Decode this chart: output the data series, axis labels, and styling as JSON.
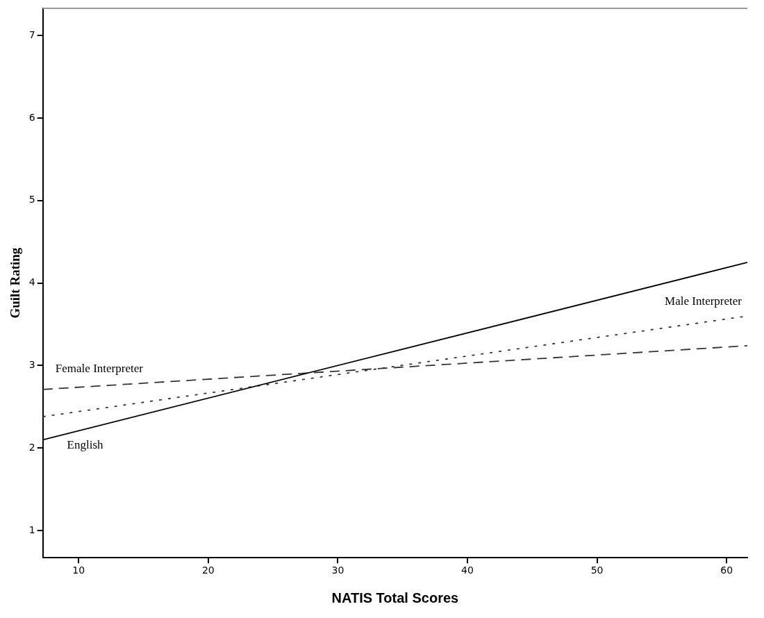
{
  "chart_data": {
    "type": "line",
    "xlabel": "NATIS Total Scores",
    "ylabel": "Guilt Rating",
    "xlim": [
      7.24,
      61.6
    ],
    "ylim": [
      0.67,
      7.33
    ],
    "xticks": [
      10,
      20,
      30,
      40,
      50,
      60
    ],
    "yticks": [
      1,
      2,
      3,
      4,
      5,
      6,
      7
    ],
    "grid": false,
    "legend": false,
    "marker": "none",
    "x": [
      7.24,
      61.6
    ],
    "series": [
      {
        "name": "English",
        "color": "#000000",
        "line_style": "solid",
        "values": [
          2.1,
          4.25
        ]
      },
      {
        "name": "Male Interpreter",
        "color": "#333333",
        "line_style": "dotted",
        "values": [
          2.38,
          3.6
        ]
      },
      {
        "name": "Female Interpreter",
        "color": "#333333",
        "line_style": "dashed",
        "values": [
          2.71,
          3.24
        ]
      }
    ]
  }
}
